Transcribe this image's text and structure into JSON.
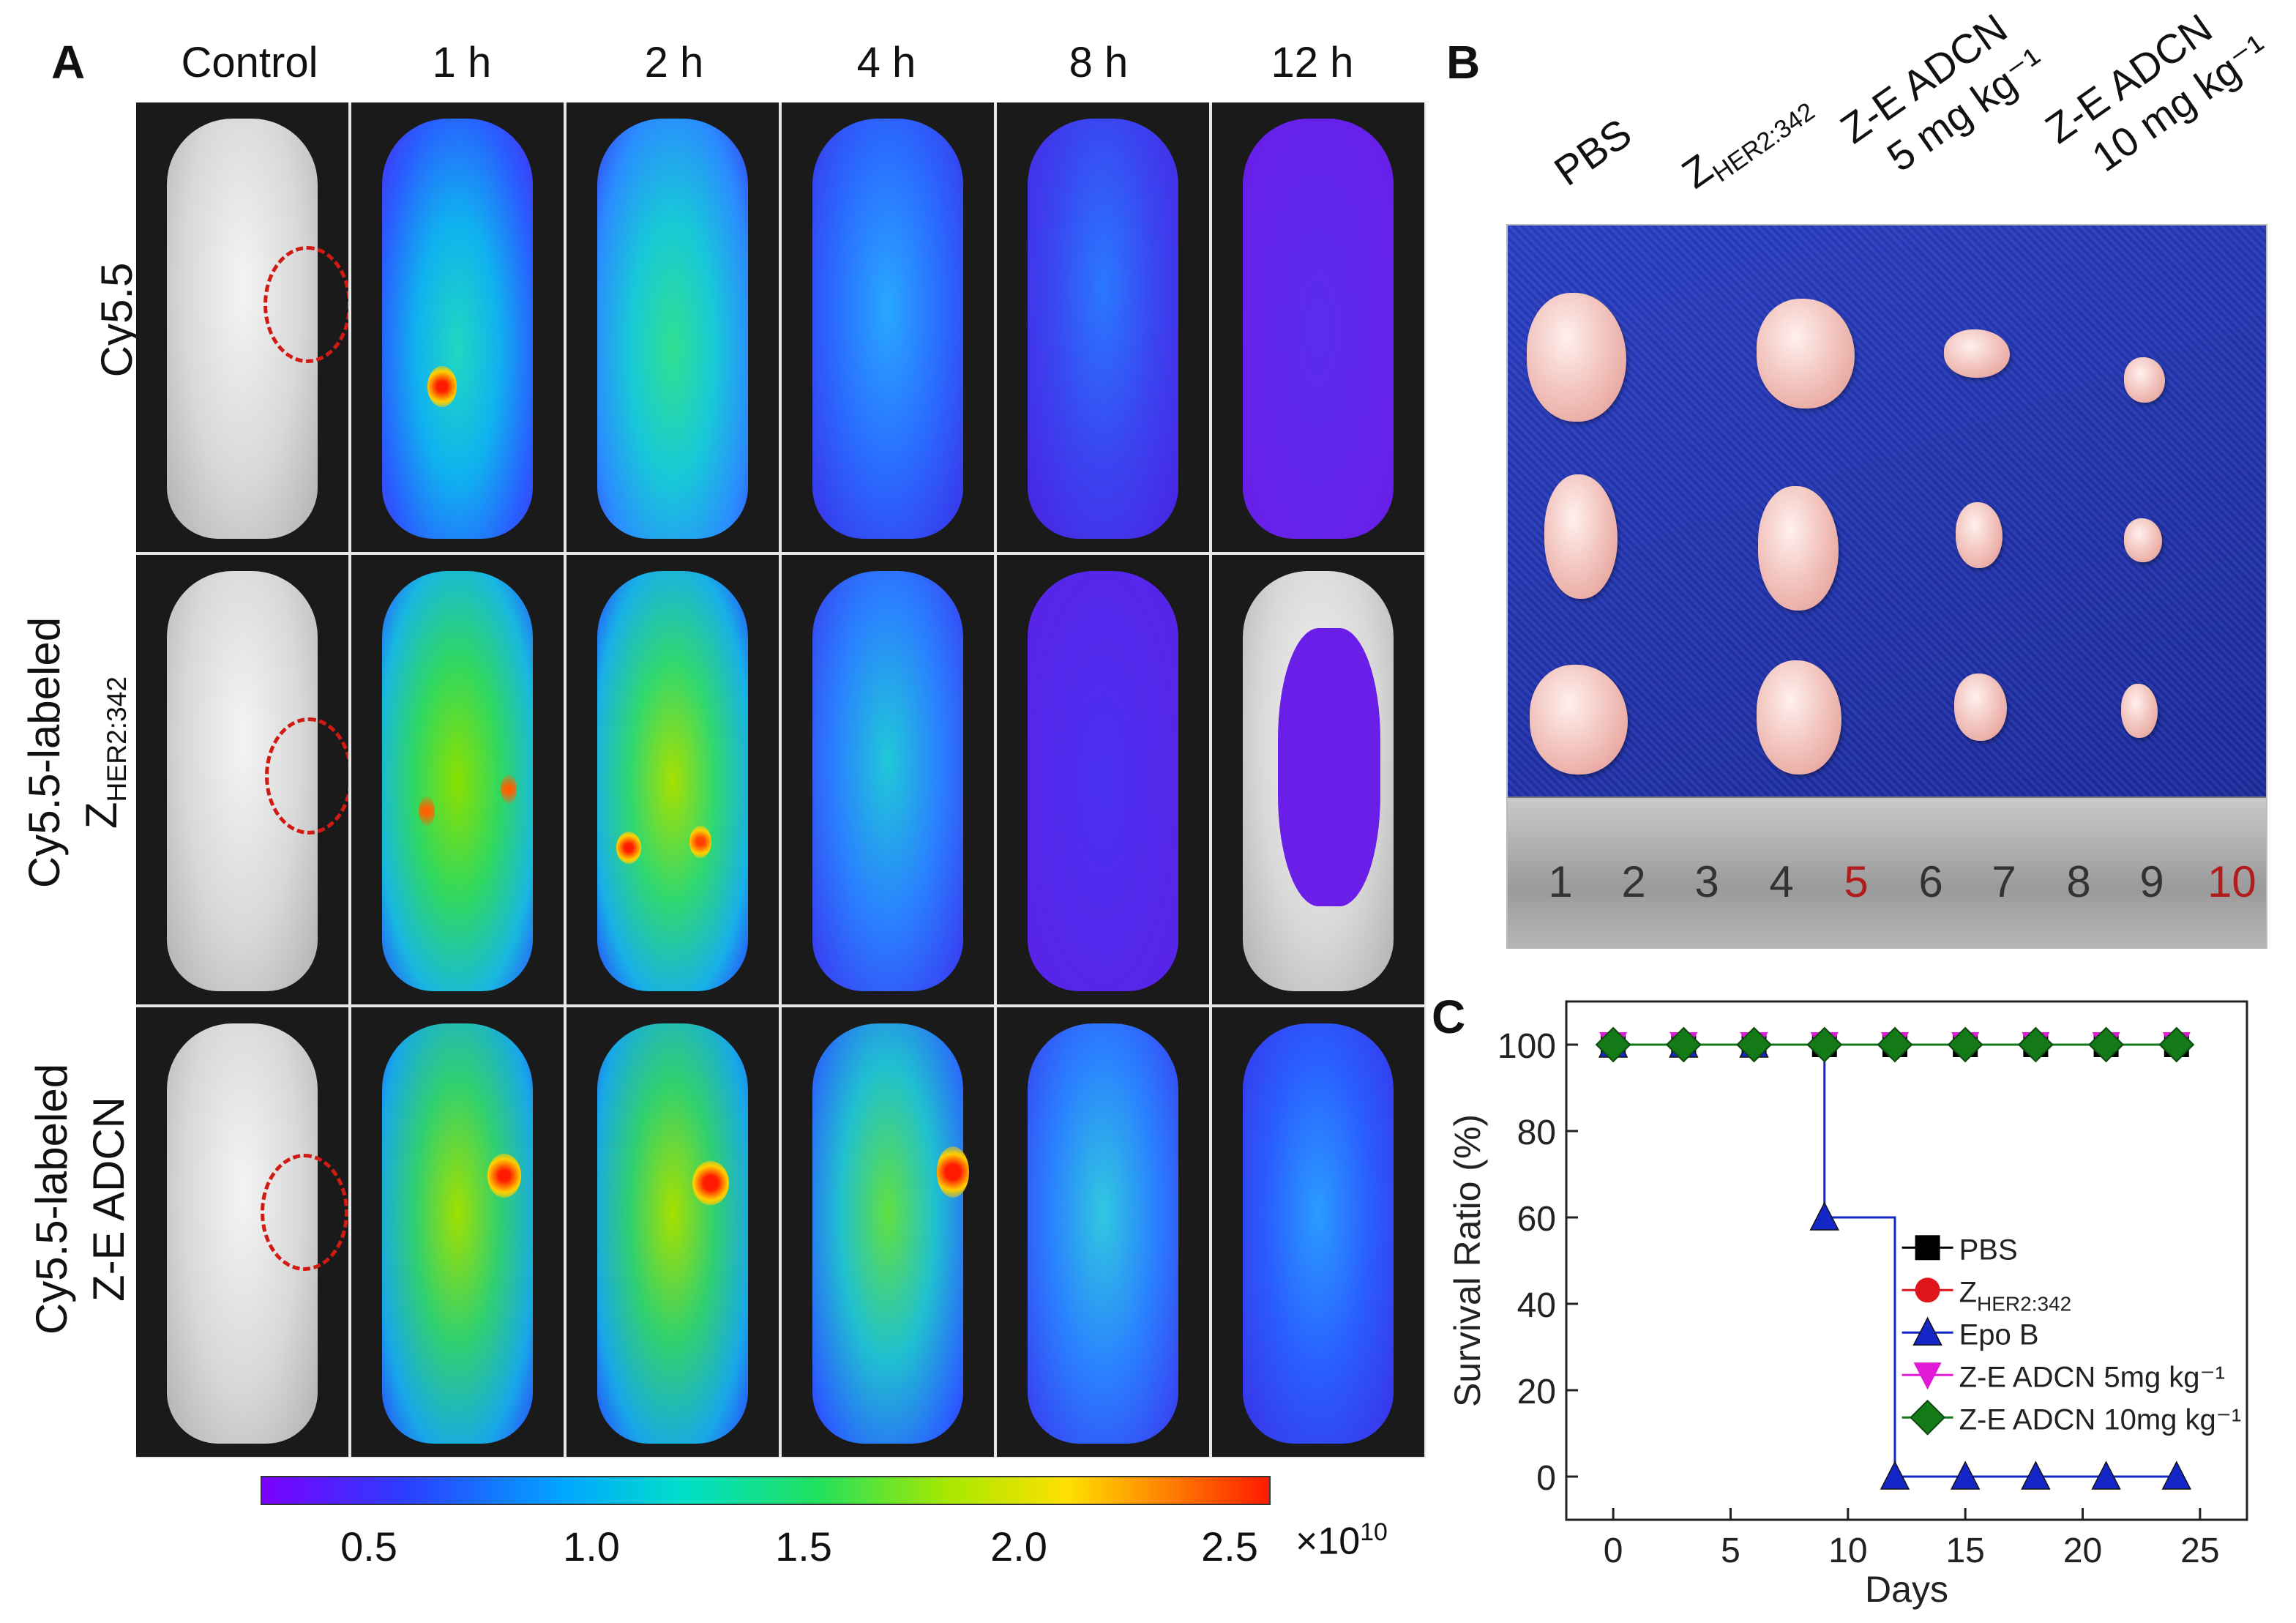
{
  "panel_a": {
    "letter": "A",
    "columns": [
      "Control",
      "1 h",
      "2 h",
      "4 h",
      "8 h",
      "12 h"
    ],
    "rows": [
      {
        "line1": "Cy5.5",
        "line2": "",
        "line2_sub": ""
      },
      {
        "line1": "Cy5.5-labeled",
        "line2": "Z",
        "line2_sub": "HER2:342"
      },
      {
        "line1": "Cy5.5-labeled",
        "line2": "Z-E ADCN",
        "line2_sub": ""
      }
    ],
    "colorbar": {
      "ticks": [
        "0.5",
        "1.0",
        "1.5",
        "2.0",
        "2.5"
      ],
      "multiplier": "×10",
      "exponent": "10"
    }
  },
  "panel_b": {
    "letter": "B",
    "groups": [
      {
        "label": "PBS",
        "sub": "",
        "line2": ""
      },
      {
        "label": "Z",
        "sub": "HER2:342",
        "line2": ""
      },
      {
        "label": "Z-E ADCN",
        "sub": "",
        "line2": "5 mg kg⁻¹"
      },
      {
        "label": "Z-E ADCN",
        "sub": "",
        "line2": "10 mg kg⁻¹"
      }
    ],
    "ruler_numbers": [
      "1",
      "2",
      "3",
      "4",
      "5",
      "6",
      "7",
      "8",
      "9",
      "10"
    ]
  },
  "panel_c": {
    "letter": "C"
  },
  "chart_data": {
    "type": "line",
    "title": "",
    "xlabel": "Days",
    "ylabel": "Survival Ratio (%)",
    "xlim": [
      -2,
      27
    ],
    "ylim": [
      -10,
      110
    ],
    "xticks": [
      0,
      5,
      10,
      15,
      20,
      25
    ],
    "yticks": [
      0,
      20,
      40,
      60,
      80,
      100
    ],
    "step": true,
    "series": [
      {
        "name": "PBS",
        "sub": "",
        "color": "#000000",
        "marker": "square",
        "x": [
          0,
          3,
          6,
          9,
          12,
          15,
          18,
          21,
          24
        ],
        "y": [
          100,
          100,
          100,
          100,
          100,
          100,
          100,
          100,
          100
        ]
      },
      {
        "name": "Z",
        "sub": "HER2:342",
        "color": "#e0141b",
        "marker": "circle",
        "x": [
          0,
          3,
          6,
          9,
          12,
          15,
          18,
          21,
          24
        ],
        "y": [
          100,
          100,
          100,
          100,
          100,
          100,
          100,
          100,
          100
        ]
      },
      {
        "name": "Epo B",
        "sub": "",
        "color": "#1526c8",
        "marker": "triangle-up",
        "x": [
          0,
          3,
          6,
          9,
          12,
          15,
          18,
          21,
          24
        ],
        "y": [
          100,
          100,
          100,
          60,
          0,
          0,
          0,
          0,
          0
        ]
      },
      {
        "name": "Z-E ADCN 5mg kg⁻¹",
        "sub": "",
        "color": "#e01bd8",
        "marker": "triangle-down",
        "x": [
          0,
          3,
          6,
          9,
          12,
          15,
          18,
          21,
          24
        ],
        "y": [
          100,
          100,
          100,
          100,
          100,
          100,
          100,
          100,
          100
        ]
      },
      {
        "name": "Z-E ADCN 10mg kg⁻¹",
        "sub": "",
        "color": "#137a17",
        "marker": "diamond",
        "x": [
          0,
          3,
          6,
          9,
          12,
          15,
          18,
          21,
          24
        ],
        "y": [
          100,
          100,
          100,
          100,
          100,
          100,
          100,
          100,
          100
        ]
      }
    ],
    "legend_position": "lower-right"
  }
}
